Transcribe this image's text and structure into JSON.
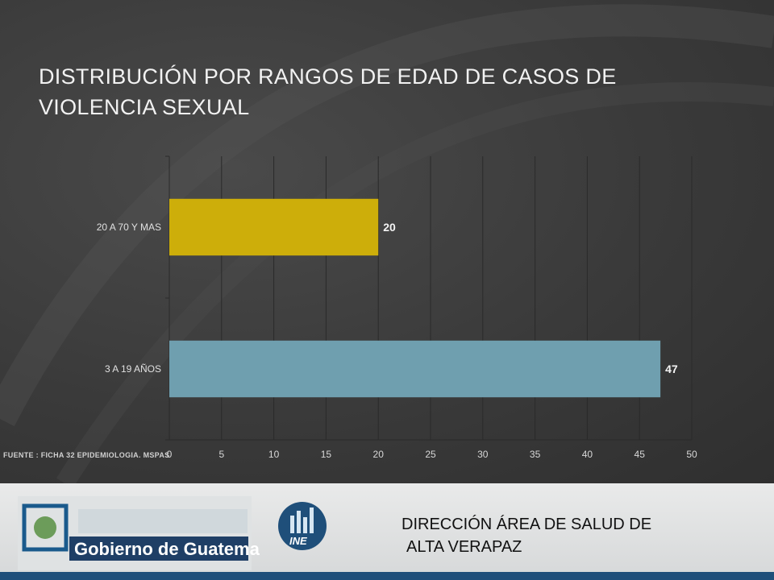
{
  "slide": {
    "title": "DISTRIBUCIÓN POR RANGOS DE EDAD DE CASOS DE VIOLENCIA SEXUAL",
    "source": "FUENTE : FICHA 32 EPIDEMIOLOGIA. MSPAS"
  },
  "footer": {
    "line1": "DIRECCIÓN ÁREA DE SALUD DE",
    "line2": "ALTA VERAPAZ",
    "gov_logo_text": "Gobierno de Guatemala",
    "ine_logo_text": "INE"
  },
  "chart_data": {
    "type": "bar",
    "orientation": "horizontal",
    "title": "",
    "xlabel": "",
    "ylabel": "",
    "categories": [
      "20 A 70 Y MAS",
      "3 A 19 AÑOS"
    ],
    "values": [
      20,
      47
    ],
    "colors": [
      "#cdae0a",
      "#6f9faf"
    ],
    "xlim": [
      0,
      50
    ],
    "x_ticks": [
      0,
      5,
      10,
      15,
      20,
      25,
      30,
      35,
      40,
      45,
      50
    ],
    "grid": true,
    "legend": "none",
    "data_labels": true
  }
}
